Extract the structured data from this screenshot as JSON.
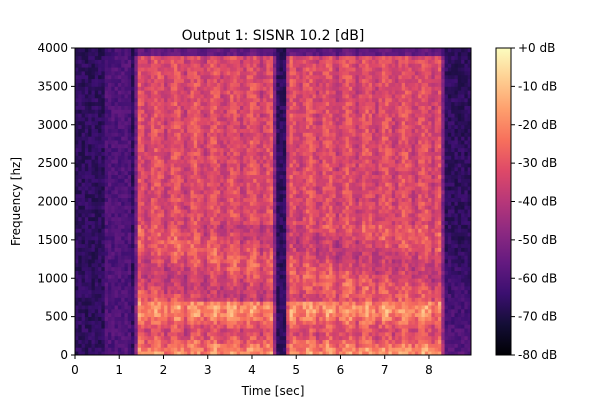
{
  "chart_data": {
    "type": "heatmap",
    "title": "Output 1: SISNR 10.2 [dB]",
    "xlabel": "Time [sec]",
    "ylabel": "Frequency [hz]",
    "xlim": [
      0,
      8.95
    ],
    "ylim": [
      0,
      4000
    ],
    "x_ticks": [
      0,
      1,
      2,
      3,
      4,
      5,
      6,
      7,
      8
    ],
    "x_tick_labels": [
      "0",
      "1",
      "2",
      "3",
      "4",
      "5",
      "6",
      "7",
      "8"
    ],
    "y_ticks": [
      0,
      500,
      1000,
      1500,
      2000,
      2500,
      3000,
      3500,
      4000
    ],
    "y_tick_labels": [
      "0",
      "500",
      "1000",
      "1500",
      "2000",
      "2500",
      "3000",
      "3500",
      "4000"
    ],
    "colorbar": {
      "colormap": "magma",
      "range": [
        -80,
        0
      ],
      "ticks": [
        0,
        -10,
        -20,
        -30,
        -40,
        -50,
        -60,
        -70,
        -80
      ],
      "tick_labels": [
        "+0 dB",
        "-10 dB",
        "-20 dB",
        "-30 dB",
        "-40 dB",
        "-50 dB",
        "-60 dB",
        "-70 dB",
        "-80 dB"
      ]
    },
    "speech_segments_sec": [
      [
        1.35,
        4.55
      ],
      [
        4.75,
        8.35
      ]
    ],
    "low_frequency_harmonic_band_hz": [
      0,
      700
    ],
    "grid": false
  },
  "colors": {
    "colormap_stops": [
      "#000004",
      "#140e36",
      "#3b0f70",
      "#641a80",
      "#8c2981",
      "#b73779",
      "#de4968",
      "#f7705c",
      "#fe9f6d",
      "#fecf92",
      "#fcfdbf"
    ]
  }
}
